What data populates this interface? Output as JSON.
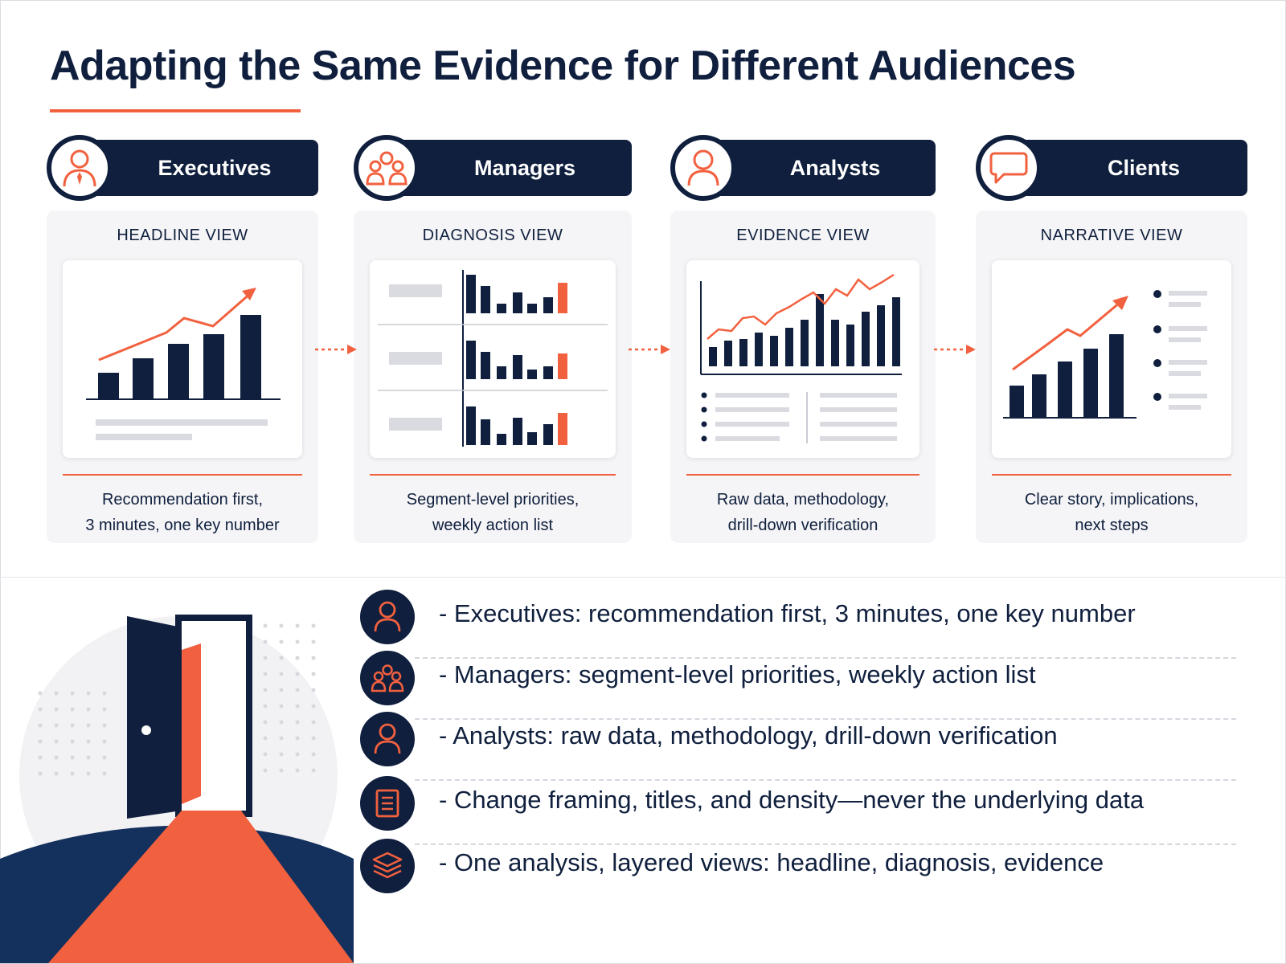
{
  "title": "Adapting the Same Evidence for Different Audiences",
  "colors": {
    "navy": "#0f1f3d",
    "accent": "#f2613f",
    "card": "#f5f5f7"
  },
  "audiences": [
    {
      "label": "Executives",
      "icon": "executive-person-icon",
      "view": "HEADLINE VIEW",
      "desc1": "Recommendation first,",
      "desc2": "3 minutes, one key number"
    },
    {
      "label": "Managers",
      "icon": "group-people-icon",
      "view": "DIAGNOSIS VIEW",
      "desc1": "Segment-level priorities,",
      "desc2": "weekly action list"
    },
    {
      "label": "Analysts",
      "icon": "person-icon",
      "view": "EVIDENCE VIEW",
      "desc1": "Raw data, methodology,",
      "desc2": "drill-down verification"
    },
    {
      "label": "Clients",
      "icon": "chat-bubble-icon",
      "view": "NARRATIVE VIEW",
      "desc1": "Clear story, implications,",
      "desc2": "next steps"
    }
  ],
  "points": [
    {
      "icon": "person-icon",
      "text": "- Executives: recommendation first, 3 minutes, one key number"
    },
    {
      "icon": "group-people-icon",
      "text": "- Managers: segment-level priorities, weekly action list"
    },
    {
      "icon": "person-icon",
      "text": "- Analysts: raw data, methodology, drill-down verification"
    },
    {
      "icon": "document-icon",
      "text": "- Change framing, titles, and density—never the underlying data"
    },
    {
      "icon": "layers-icon",
      "text": "- One analysis, layered views: headline, diagnosis, evidence"
    }
  ]
}
